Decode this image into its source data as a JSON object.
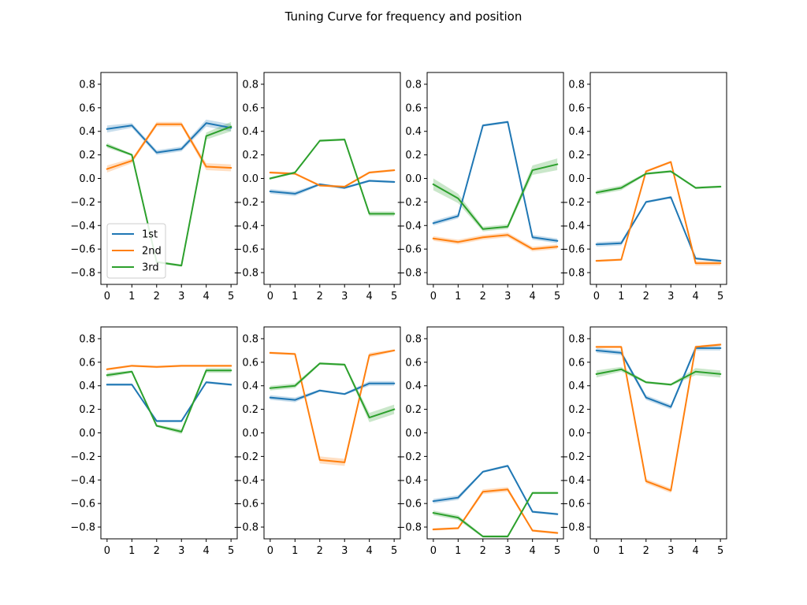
{
  "figure": {
    "title": "Tuning Curve for frequency and position"
  },
  "colors": {
    "series": [
      "#1f77b4",
      "#ff7f0e",
      "#2ca02c"
    ],
    "axis": "#000000",
    "background": "#ffffff"
  },
  "chart_data": [
    {
      "type": "line",
      "x": [
        0,
        1,
        2,
        3,
        4,
        5
      ],
      "xlim": [
        -0.25,
        5.25
      ],
      "ylim": [
        -0.9,
        0.9
      ],
      "yticks": [
        -0.8,
        -0.6,
        -0.4,
        -0.2,
        0.0,
        0.2,
        0.4,
        0.6,
        0.8
      ],
      "legend": {
        "show": true,
        "placement": "lower-left"
      },
      "series": [
        {
          "name": "1st",
          "values": [
            0.42,
            0.45,
            0.22,
            0.25,
            0.47,
            0.43
          ],
          "band": [
            0.03,
            0.02,
            0.02,
            0.02,
            0.03,
            0.03
          ]
        },
        {
          "name": "2nd",
          "values": [
            0.08,
            0.15,
            0.46,
            0.46,
            0.1,
            0.09
          ],
          "band": [
            0.03,
            0.02,
            0.02,
            0.02,
            0.03,
            0.03
          ]
        },
        {
          "name": "3rd",
          "values": [
            0.28,
            0.2,
            -0.71,
            -0.74,
            0.36,
            0.44
          ],
          "band": [
            0.02,
            0.01,
            0.01,
            0.01,
            0.03,
            0.04
          ]
        }
      ]
    },
    {
      "type": "line",
      "x": [
        0,
        1,
        2,
        3,
        4,
        5
      ],
      "xlim": [
        -0.25,
        5.25
      ],
      "ylim": [
        -0.9,
        0.9
      ],
      "yticks": [
        -0.8,
        -0.6,
        -0.4,
        -0.2,
        0.0,
        0.2,
        0.4,
        0.6,
        0.8
      ],
      "series": [
        {
          "values": [
            -0.11,
            -0.13,
            -0.05,
            -0.08,
            -0.02,
            -0.03
          ],
          "band": [
            0.02,
            0.02,
            0.01,
            0.01,
            0.01,
            0.01
          ]
        },
        {
          "values": [
            0.05,
            0.04,
            -0.06,
            -0.07,
            0.05,
            0.07
          ],
          "band": [
            0.01,
            0.01,
            0.01,
            0.01,
            0.01,
            0.01
          ]
        },
        {
          "values": [
            0.0,
            0.05,
            0.32,
            0.33,
            -0.3,
            -0.3
          ],
          "band": [
            0.01,
            0.01,
            0.01,
            0.01,
            0.02,
            0.02
          ]
        }
      ]
    },
    {
      "type": "line",
      "x": [
        0,
        1,
        2,
        3,
        4,
        5
      ],
      "xlim": [
        -0.25,
        5.25
      ],
      "ylim": [
        -0.9,
        0.9
      ],
      "yticks": [
        -0.8,
        -0.6,
        -0.4,
        -0.2,
        0.0,
        0.2,
        0.4,
        0.6,
        0.8
      ],
      "series": [
        {
          "values": [
            -0.38,
            -0.32,
            0.45,
            0.48,
            -0.5,
            -0.53
          ],
          "band": [
            0.02,
            0.02,
            0.01,
            0.01,
            0.02,
            0.02
          ]
        },
        {
          "values": [
            -0.51,
            -0.54,
            -0.5,
            -0.48,
            -0.6,
            -0.58
          ],
          "band": [
            0.02,
            0.02,
            0.02,
            0.02,
            0.02,
            0.02
          ]
        },
        {
          "values": [
            -0.05,
            -0.17,
            -0.43,
            -0.41,
            0.07,
            0.12
          ],
          "band": [
            0.05,
            0.04,
            0.02,
            0.02,
            0.04,
            0.05
          ]
        }
      ]
    },
    {
      "type": "line",
      "x": [
        0,
        1,
        2,
        3,
        4,
        5
      ],
      "xlim": [
        -0.25,
        5.25
      ],
      "ylim": [
        -0.9,
        0.9
      ],
      "yticks": [
        -0.8,
        -0.6,
        -0.4,
        -0.2,
        0.0,
        0.2,
        0.4,
        0.6,
        0.8
      ],
      "series": [
        {
          "values": [
            -0.56,
            -0.55,
            -0.2,
            -0.16,
            -0.68,
            -0.7
          ],
          "band": [
            0.02,
            0.02,
            0.01,
            0.01,
            0.01,
            0.01
          ]
        },
        {
          "values": [
            -0.7,
            -0.69,
            0.06,
            0.14,
            -0.72,
            -0.72
          ],
          "band": [
            0.01,
            0.01,
            0.01,
            0.01,
            0.02,
            0.02
          ]
        },
        {
          "values": [
            -0.12,
            -0.08,
            0.04,
            0.06,
            -0.08,
            -0.07
          ],
          "band": [
            0.02,
            0.02,
            0.01,
            0.01,
            0.01,
            0.01
          ]
        }
      ]
    },
    {
      "type": "line",
      "x": [
        0,
        1,
        2,
        3,
        4,
        5
      ],
      "xlim": [
        -0.25,
        5.25
      ],
      "ylim": [
        -0.9,
        0.9
      ],
      "yticks": [
        -0.8,
        -0.6,
        -0.4,
        -0.2,
        0.0,
        0.2,
        0.4,
        0.6,
        0.8
      ],
      "series": [
        {
          "values": [
            0.41,
            0.41,
            0.1,
            0.1,
            0.43,
            0.41
          ],
          "band": [
            0.01,
            0.01,
            0.01,
            0.01,
            0.01,
            0.01
          ]
        },
        {
          "values": [
            0.54,
            0.57,
            0.56,
            0.57,
            0.57,
            0.57
          ],
          "band": [
            0.01,
            0.01,
            0.01,
            0.01,
            0.01,
            0.01
          ]
        },
        {
          "values": [
            0.49,
            0.52,
            0.06,
            0.01,
            0.53,
            0.53
          ],
          "band": [
            0.02,
            0.01,
            0.01,
            0.02,
            0.02,
            0.02
          ]
        }
      ]
    },
    {
      "type": "line",
      "x": [
        0,
        1,
        2,
        3,
        4,
        5
      ],
      "xlim": [
        -0.25,
        5.25
      ],
      "ylim": [
        -0.9,
        0.9
      ],
      "yticks": [
        -0.8,
        -0.6,
        -0.4,
        -0.2,
        0.0,
        0.2,
        0.4,
        0.6,
        0.8
      ],
      "series": [
        {
          "values": [
            0.3,
            0.28,
            0.36,
            0.33,
            0.42,
            0.42
          ],
          "band": [
            0.02,
            0.02,
            0.01,
            0.01,
            0.02,
            0.02
          ]
        },
        {
          "values": [
            0.68,
            0.67,
            -0.23,
            -0.25,
            0.66,
            0.7
          ],
          "band": [
            0.01,
            0.01,
            0.03,
            0.03,
            0.02,
            0.01
          ]
        },
        {
          "values": [
            0.38,
            0.4,
            0.59,
            0.58,
            0.13,
            0.2
          ],
          "band": [
            0.02,
            0.02,
            0.01,
            0.01,
            0.04,
            0.04
          ]
        }
      ]
    },
    {
      "type": "line",
      "x": [
        0,
        1,
        2,
        3,
        4,
        5
      ],
      "xlim": [
        -0.25,
        5.25
      ],
      "ylim": [
        -0.9,
        0.9
      ],
      "yticks": [
        -0.8,
        -0.6,
        -0.4,
        -0.2,
        0.0,
        0.2,
        0.4,
        0.6,
        0.8
      ],
      "series": [
        {
          "values": [
            -0.58,
            -0.55,
            -0.33,
            -0.28,
            -0.67,
            -0.69
          ],
          "band": [
            0.02,
            0.02,
            0.01,
            0.01,
            0.01,
            0.01
          ]
        },
        {
          "values": [
            -0.82,
            -0.81,
            -0.5,
            -0.48,
            -0.83,
            -0.85
          ],
          "band": [
            0.01,
            0.01,
            0.02,
            0.02,
            0.01,
            0.01
          ]
        },
        {
          "values": [
            -0.68,
            -0.72,
            -0.88,
            -0.88,
            -0.51,
            -0.51
          ],
          "band": [
            0.02,
            0.02,
            0.01,
            0.01,
            0.01,
            0.01
          ]
        }
      ]
    },
    {
      "type": "line",
      "x": [
        0,
        1,
        2,
        3,
        4,
        5
      ],
      "xlim": [
        -0.25,
        5.25
      ],
      "ylim": [
        -0.9,
        0.9
      ],
      "yticks": [
        -0.8,
        -0.6,
        -0.4,
        -0.2,
        0.0,
        0.2,
        0.4,
        0.6,
        0.8
      ],
      "series": [
        {
          "values": [
            0.7,
            0.68,
            0.3,
            0.22,
            0.72,
            0.72
          ],
          "band": [
            0.02,
            0.02,
            0.02,
            0.02,
            0.02,
            0.02
          ]
        },
        {
          "values": [
            0.73,
            0.73,
            -0.41,
            -0.49,
            0.73,
            0.75
          ],
          "band": [
            0.01,
            0.01,
            0.02,
            0.02,
            0.01,
            0.01
          ]
        },
        {
          "values": [
            0.5,
            0.54,
            0.43,
            0.41,
            0.52,
            0.5
          ],
          "band": [
            0.03,
            0.02,
            0.01,
            0.01,
            0.03,
            0.03
          ]
        }
      ]
    }
  ]
}
